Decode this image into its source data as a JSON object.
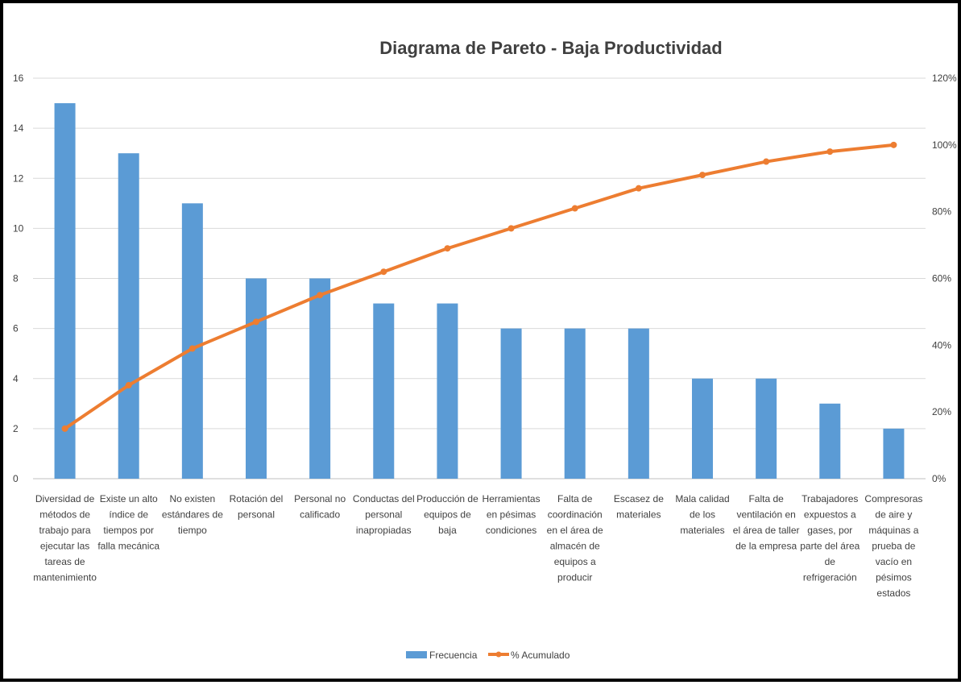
{
  "chart_data": {
    "type": "bar",
    "title": "Diagrama de Pareto - Baja Productividad",
    "categories": [
      "Diversidad de métodos de trabajo para ejecutar las tareas de mantenimiento",
      "Existe un alto índice de tiempos por falla mecánica",
      "No existen estándares de tiempo",
      "Rotación del personal",
      "Personal no calificado",
      "Conductas del personal inapropiadas",
      "Producción de equipos de baja",
      "Herramientas en pésimas condiciones",
      "Falta de coordinación en el área de almacén de equipos a producir",
      "Escasez de materiales",
      "Mala calidad de los materiales",
      "Falta de ventilación en el área de taller de la empresa",
      "Trabajadores expuestos a gases, por parte del área de refrigeración",
      "Compresoras de aire y máquinas a prueba de vacío en pésimos estados"
    ],
    "category_lines": [
      [
        "Diversidad de",
        "métodos de",
        "trabajo para",
        "ejecutar las",
        "tareas de",
        "mantenimiento"
      ],
      [
        "Existe un alto",
        "índice de",
        "tiempos por",
        "falla mecánica"
      ],
      [
        "No existen",
        "estándares de",
        "tiempo"
      ],
      [
        "Rotación del",
        "personal"
      ],
      [
        "Personal no",
        "calificado"
      ],
      [
        "Conductas del",
        "personal",
        "inapropiadas"
      ],
      [
        "Producción de",
        "equipos de",
        "baja"
      ],
      [
        "Herramientas",
        "en pésimas",
        "condiciones"
      ],
      [
        "Falta de",
        "coordinación",
        "en el área de",
        "almacén de",
        "equipos a",
        "producir"
      ],
      [
        "Escasez de",
        "materiales"
      ],
      [
        "Mala calidad",
        "de los",
        "materiales"
      ],
      [
        "Falta de",
        "ventilación en",
        "el área de taller",
        "de la empresa"
      ],
      [
        "Trabajadores",
        "expuestos a",
        "gases, por",
        "parte del área",
        "de",
        "refrigeración"
      ],
      [
        "Compresoras",
        "de aire y",
        "máquinas a",
        "prueba de",
        "vacío en",
        "pésimos",
        "estados"
      ]
    ],
    "series": [
      {
        "name": "Frecuencia",
        "type": "bar",
        "axis": "left",
        "color": "#5B9BD5",
        "values": [
          15,
          13,
          11,
          8,
          8,
          7,
          7,
          6,
          6,
          6,
          4,
          4,
          3,
          2
        ]
      },
      {
        "name": "% Acumulado",
        "type": "line",
        "axis": "right",
        "color": "#ED7D31",
        "values": [
          15,
          28,
          39,
          47,
          55,
          62,
          69,
          75,
          81,
          87,
          91,
          95,
          98,
          100
        ]
      }
    ],
    "y_left": {
      "min": 0,
      "max": 16,
      "ticks": [
        "0",
        "2",
        "4",
        "6",
        "8",
        "10",
        "12",
        "14",
        "16"
      ]
    },
    "y_right": {
      "min": 0,
      "max": 120,
      "ticks": [
        "0%",
        "20%",
        "40%",
        "60%",
        "80%",
        "100%",
        "120%"
      ]
    },
    "grid": true,
    "legend": "bottom-center"
  }
}
